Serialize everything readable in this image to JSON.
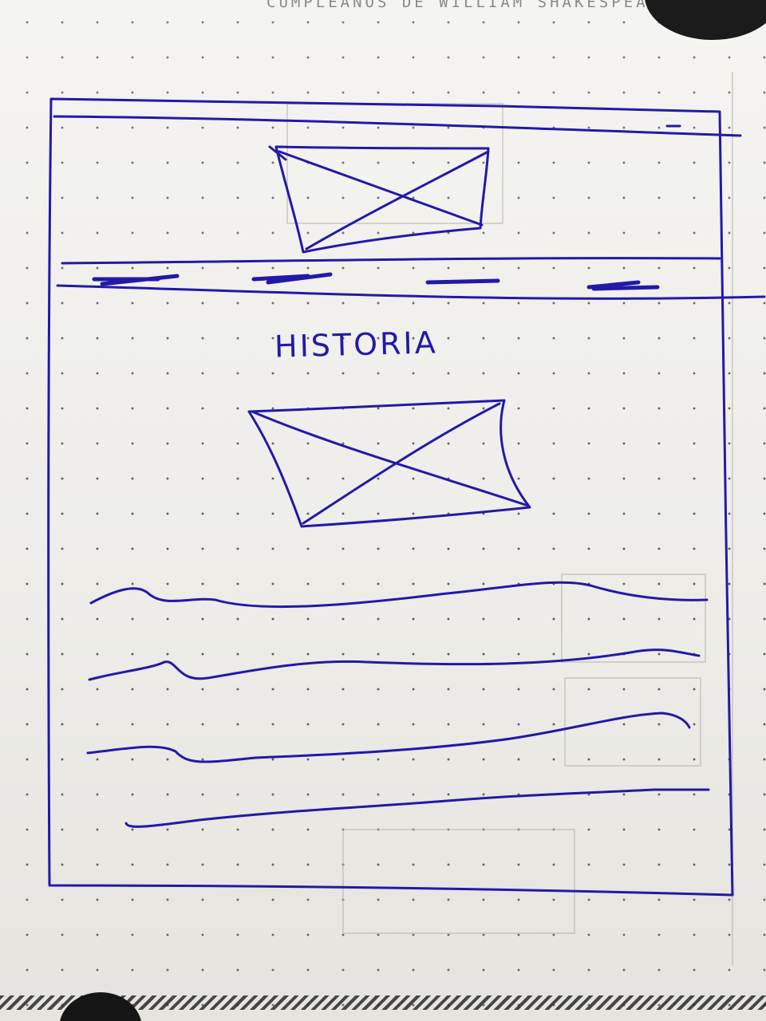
{
  "notebook": {
    "header_text": "CUMPLEAÑOS DE WILLIAM SHAKESPEARE"
  },
  "wireframe": {
    "section_title": "HISTORIA"
  },
  "colors": {
    "ink": "#2219a8",
    "paper": "#efeeea",
    "dots": "#3a3a3a"
  }
}
